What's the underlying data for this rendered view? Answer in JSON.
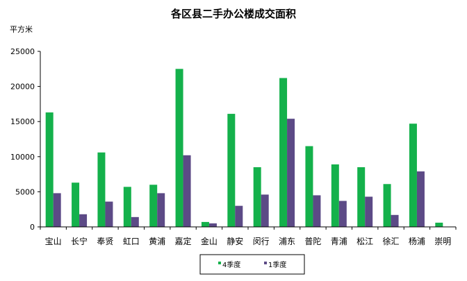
{
  "chart_data": {
    "type": "bar",
    "title": "各区县二手办公楼成交面积",
    "ylabel": "平方米",
    "xlabel": "",
    "categories": [
      "宝山",
      "长宁",
      "奉贤",
      "虹口",
      "黄浦",
      "嘉定",
      "金山",
      "静安",
      "闵行",
      "浦东",
      "普陀",
      "青浦",
      "松江",
      "徐汇",
      "杨浦",
      "崇明"
    ],
    "series": [
      {
        "name": "4季度",
        "color": "#14b14b",
        "values": [
          16300,
          6300,
          10600,
          5700,
          6000,
          22500,
          700,
          16100,
          8500,
          21200,
          11500,
          8900,
          8500,
          6100,
          14700,
          600
        ]
      },
      {
        "name": "1季度",
        "color": "#5c4a86",
        "values": [
          4800,
          1800,
          3600,
          1400,
          4800,
          10200,
          500,
          3000,
          4600,
          15400,
          4500,
          3700,
          4300,
          1700,
          7900,
          0
        ]
      }
    ],
    "ylim": [
      0,
      25000
    ],
    "yticks": [
      0,
      5000,
      10000,
      15000,
      20000,
      25000
    ],
    "grid": false,
    "legend_position": "bottom"
  }
}
